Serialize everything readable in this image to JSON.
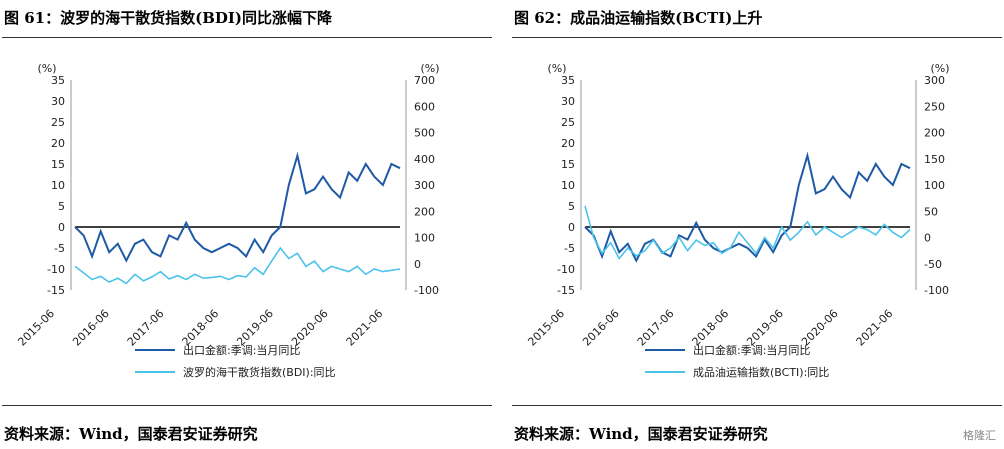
{
  "colors": {
    "dark": "#1f5aa6",
    "light": "#4cc3ea",
    "axis": "#000000",
    "text": "#222222"
  },
  "watermark": "格隆汇",
  "panels": [
    {
      "title": "图 61：波罗的海干散货指数(BDI)同比涨幅下降",
      "source": "资料来源：Wind，国泰君安证券研究",
      "left_unit": "(%)",
      "right_unit": "(%)",
      "legend": [
        "出口金额:季调:当月同比",
        "波罗的海干散货指数(BDI):同比"
      ],
      "chart_data": {
        "type": "line",
        "title": "",
        "x_labels": [
          "2015-06",
          "2016-06",
          "2017-06",
          "2018-06",
          "2019-06",
          "2020-06",
          "2021-06"
        ],
        "y_left": {
          "range": [
            -15,
            35
          ],
          "ticks": [
            -15,
            -10,
            -5,
            0,
            5,
            10,
            15,
            20,
            25,
            30,
            35
          ]
        },
        "y_right": {
          "range": [
            -100,
            700
          ],
          "ticks": [
            -100,
            0,
            100,
            200,
            300,
            400,
            500,
            600,
            700
          ]
        },
        "series": [
          {
            "name": "出口金额:季调:当月同比",
            "axis": "left",
            "color": "#1f5aa6",
            "x": [
              0,
              2,
              4,
              6,
              8,
              10,
              12,
              14,
              16,
              18,
              20,
              22,
              24,
              26,
              28,
              30,
              32,
              34,
              36,
              38,
              40,
              42,
              44,
              46,
              48,
              50,
              52,
              54,
              56,
              58,
              60,
              62,
              64,
              66,
              68,
              70,
              72,
              74,
              76
            ],
            "y": [
              0,
              -2,
              -7,
              -1,
              -6,
              -4,
              -8,
              -4,
              -3,
              -6,
              -7,
              -2,
              -3,
              1,
              -3,
              -5,
              -6,
              -5,
              -4,
              -5,
              -7,
              -3,
              -6,
              -2,
              0,
              10,
              17,
              8,
              9,
              12,
              9,
              7,
              13,
              11,
              15,
              12,
              10,
              15,
              14
            ]
          },
          {
            "name": "波罗的海干散货指数(BDI):同比",
            "axis": "right",
            "color": "#4cc3ea",
            "x": [
              0,
              2,
              4,
              6,
              8,
              10,
              12,
              14,
              16,
              18,
              20,
              22,
              24,
              26,
              28,
              30,
              32,
              34,
              36,
              38,
              40,
              42,
              44,
              46,
              48,
              50,
              52,
              54,
              56,
              58,
              60,
              62,
              64,
              66,
              68,
              70,
              72,
              74,
              76
            ],
            "y": [
              -10,
              -35,
              -60,
              -48,
              -70,
              -55,
              -75,
              -40,
              -65,
              -50,
              -30,
              -58,
              -45,
              -60,
              -40,
              -55,
              -52,
              -48,
              -60,
              -45,
              -50,
              -15,
              -40,
              10,
              60,
              20,
              40,
              -10,
              10,
              -30,
              -10,
              -20,
              -30,
              -10,
              -40,
              -20,
              -30,
              -25,
              -20
            ]
          }
        ]
      }
    },
    {
      "title": "图 62：成品油运输指数(BCTI)上升",
      "source": "资料来源：Wind，国泰君安证券研究",
      "left_unit": "(%)",
      "right_unit": "(%)",
      "legend": [
        "出口金额:季调:当月同比",
        "成品油运输指数(BCTI):同比"
      ],
      "chart_data": {
        "type": "line",
        "title": "",
        "x_labels": [
          "2015-06",
          "2016-06",
          "2017-06",
          "2018-06",
          "2019-06",
          "2020-06",
          "2021-06"
        ],
        "y_left": {
          "range": [
            -15,
            35
          ],
          "ticks": [
            -15,
            -10,
            -5,
            0,
            5,
            10,
            15,
            20,
            25,
            30,
            35
          ]
        },
        "y_right": {
          "range": [
            -100,
            300
          ],
          "ticks": [
            -100,
            -50,
            0,
            50,
            100,
            150,
            200,
            250,
            300
          ]
        },
        "series": [
          {
            "name": "出口金额:季调:当月同比",
            "axis": "left",
            "color": "#1f5aa6",
            "x": [
              0,
              2,
              4,
              6,
              8,
              10,
              12,
              14,
              16,
              18,
              20,
              22,
              24,
              26,
              28,
              30,
              32,
              34,
              36,
              38,
              40,
              42,
              44,
              46,
              48,
              50,
              52,
              54,
              56,
              58,
              60,
              62,
              64,
              66,
              68,
              70,
              72,
              74,
              76
            ],
            "y": [
              0,
              -2,
              -7,
              -1,
              -6,
              -4,
              -8,
              -4,
              -3,
              -6,
              -7,
              -2,
              -3,
              1,
              -3,
              -5,
              -6,
              -5,
              -4,
              -5,
              -7,
              -3,
              -6,
              -2,
              0,
              10,
              17,
              8,
              9,
              12,
              9,
              7,
              13,
              11,
              15,
              12,
              10,
              15,
              14
            ]
          },
          {
            "name": "成品油运输指数(BCTI):同比",
            "axis": "right",
            "color": "#4cc3ea",
            "x": [
              0,
              2,
              4,
              6,
              8,
              10,
              12,
              14,
              16,
              18,
              20,
              22,
              24,
              26,
              28,
              30,
              32,
              34,
              36,
              38,
              40,
              42,
              44,
              46,
              48,
              50,
              52,
              54,
              56,
              58,
              60,
              62,
              64,
              66,
              68,
              70,
              72,
              74,
              76
            ],
            "y": [
              60,
              0,
              -30,
              -10,
              -40,
              -20,
              -35,
              -25,
              -5,
              -30,
              -20,
              0,
              -25,
              -5,
              -15,
              -10,
              -30,
              -20,
              10,
              -10,
              -30,
              0,
              -20,
              20,
              -5,
              10,
              30,
              5,
              20,
              10,
              0,
              10,
              20,
              15,
              5,
              25,
              10,
              0,
              15
            ]
          }
        ]
      }
    }
  ]
}
